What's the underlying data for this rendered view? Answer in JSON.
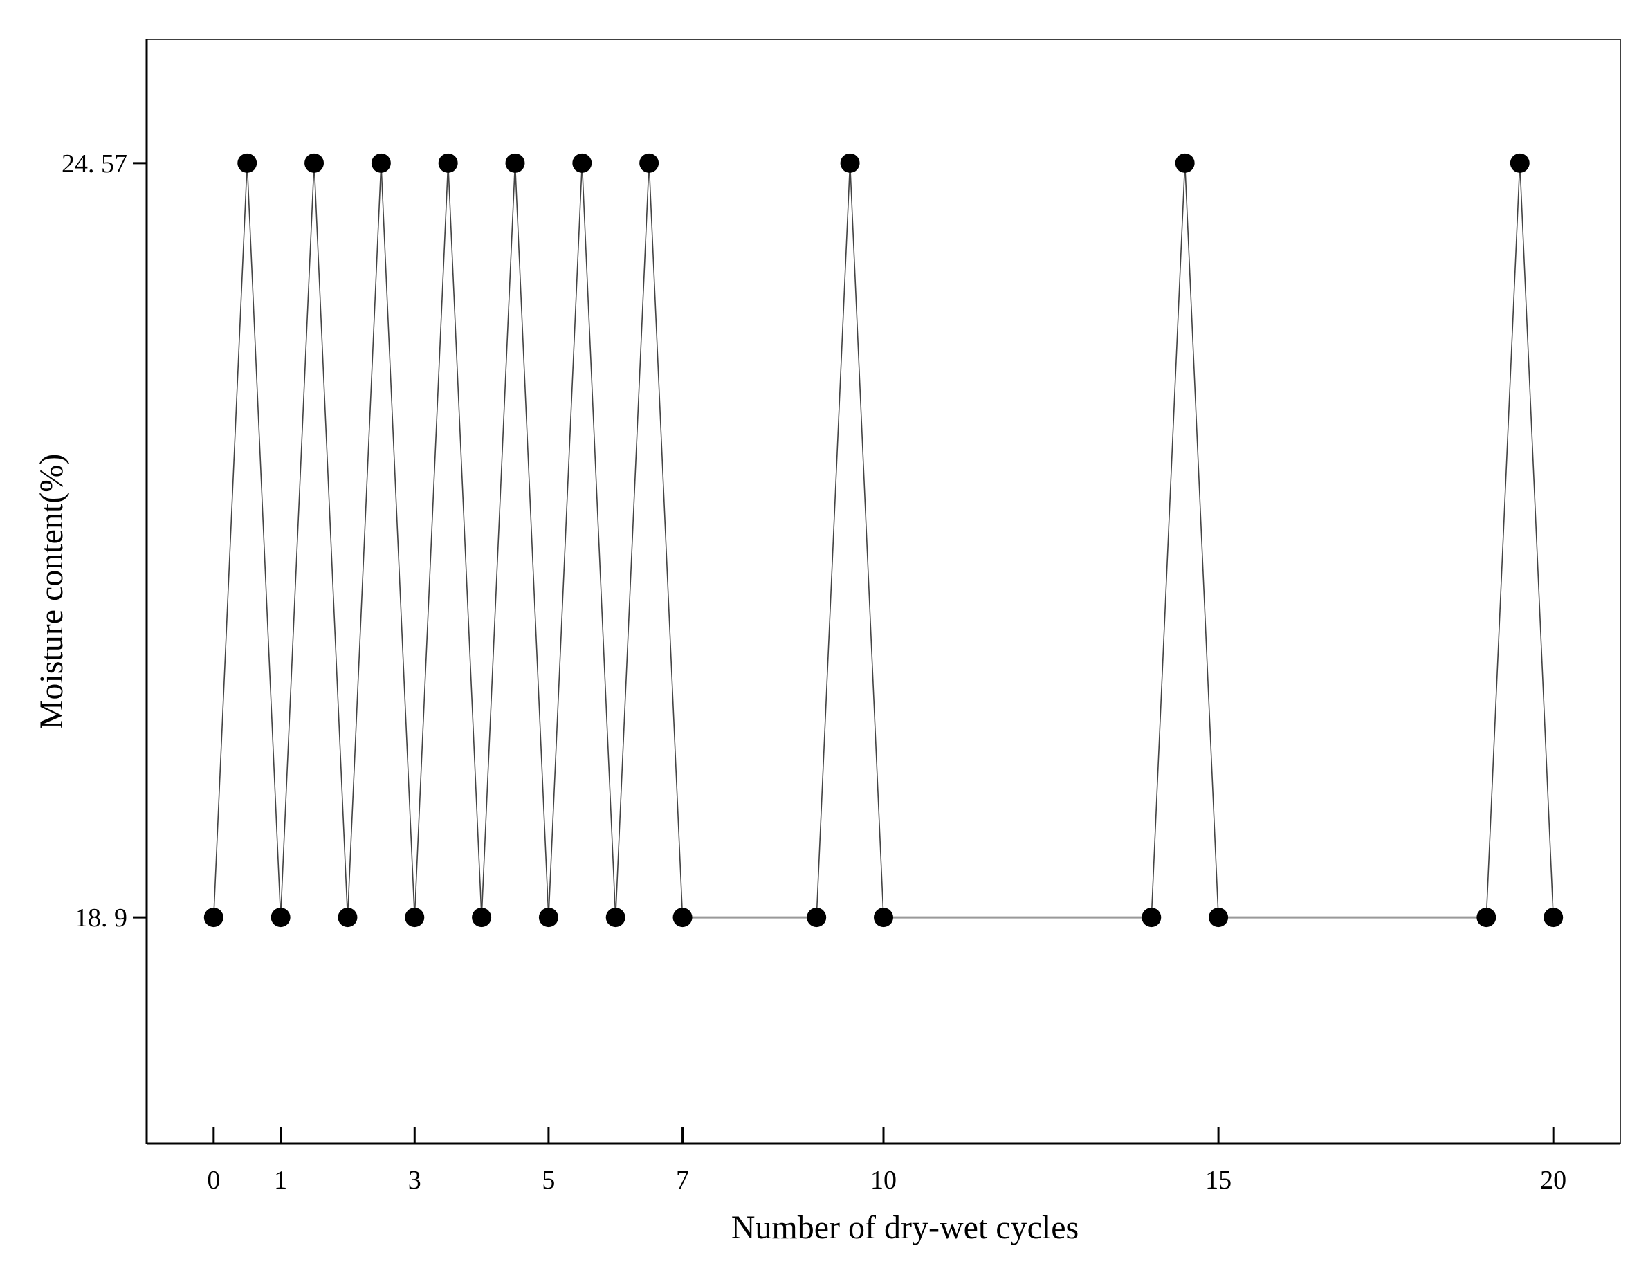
{
  "chart_data": {
    "type": "line",
    "xlabel": "Number of dry-wet cycles",
    "ylabel": "Moisture content(%)",
    "xlim": [
      -1,
      21
    ],
    "ylim": [
      17.2,
      25.5
    ],
    "x_ticks": [
      0,
      1,
      3,
      5,
      7,
      10,
      15,
      20
    ],
    "y_ticks": [
      18.9,
      24.57
    ],
    "y_tick_labels": [
      "18. 9",
      "24. 57"
    ],
    "grid": false,
    "colors": {
      "line_wet_dry": "#444444",
      "line_flat": "#999999",
      "marker": "#000000"
    },
    "series": [
      {
        "points": [
          [
            0,
            18.9
          ],
          [
            0.5,
            24.57
          ],
          [
            1,
            18.9
          ],
          [
            1.5,
            24.57
          ],
          [
            2,
            18.9
          ],
          [
            2.5,
            24.57
          ],
          [
            3,
            18.9
          ],
          [
            3.5,
            24.57
          ],
          [
            4,
            18.9
          ],
          [
            4.5,
            24.57
          ],
          [
            5,
            18.9
          ],
          [
            5.5,
            24.57
          ],
          [
            6,
            18.9
          ],
          [
            6.5,
            24.57
          ],
          [
            7,
            18.9
          ],
          [
            9,
            18.9
          ],
          [
            9.5,
            24.57
          ],
          [
            10,
            18.9
          ],
          [
            14,
            18.9
          ],
          [
            14.5,
            24.57
          ],
          [
            15,
            18.9
          ],
          [
            19,
            18.9
          ],
          [
            19.5,
            24.57
          ],
          [
            20,
            18.9
          ]
        ]
      }
    ]
  }
}
